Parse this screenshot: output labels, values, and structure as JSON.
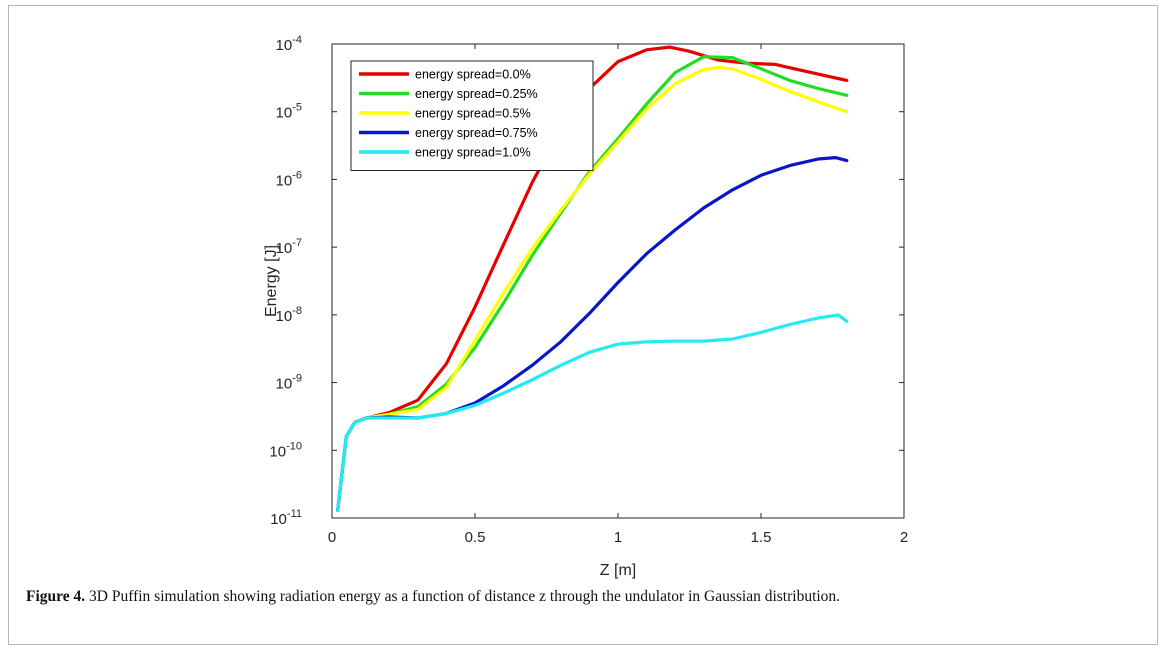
{
  "caption": {
    "label": "Figure 4.",
    "text": " 3D Puffin simulation showing radiation energy as a function of distance z through the undulator in Gaussian distribution."
  },
  "chart_data": {
    "type": "line",
    "xlabel": "Z [m]",
    "ylabel": "Energy [J]",
    "xlim": [
      0,
      2
    ],
    "ylim": [
      1e-11,
      0.0001
    ],
    "yscale": "log",
    "grid": false,
    "legend_position": "top-left",
    "x_ticks": [
      0,
      0.5,
      1,
      1.5,
      2
    ],
    "x_tick_labels": [
      "0",
      "0.5",
      "1",
      "1.5",
      "2"
    ],
    "y_ticks": [
      -11,
      -10,
      -9,
      -8,
      -7,
      -6,
      -5,
      -4
    ],
    "y_tick_base": "10",
    "y_tick_exponents": [
      "-11",
      "-10",
      "-9",
      "-8",
      "-7",
      "-6",
      "-5",
      "-4"
    ],
    "series": [
      {
        "name": "energy spread=0.0%",
        "color": "#e60000",
        "x": [
          0.02,
          0.05,
          0.08,
          0.12,
          0.2,
          0.3,
          0.4,
          0.5,
          0.6,
          0.7,
          0.8,
          0.9,
          1.0,
          1.1,
          1.18,
          1.25,
          1.35,
          1.45,
          1.55,
          1.65,
          1.8
        ],
        "y": [
          1.3e-11,
          1.6e-10,
          2.6e-10,
          3e-10,
          3.6e-10,
          5.5e-10,
          1.9e-09,
          1.3e-08,
          1.1e-07,
          9e-07,
          5.5e-06,
          2.2e-05,
          5.5e-05,
          8.2e-05,
          9e-05,
          7.8e-05,
          5.8e-05,
          5.2e-05,
          5e-05,
          4e-05,
          2.9e-05
        ]
      },
      {
        "name": "energy spread=0.25%",
        "color": "#22dd22",
        "x": [
          0.02,
          0.05,
          0.08,
          0.12,
          0.2,
          0.3,
          0.4,
          0.5,
          0.6,
          0.7,
          0.8,
          0.9,
          1.0,
          1.1,
          1.2,
          1.3,
          1.4,
          1.5,
          1.6,
          1.7,
          1.8
        ],
        "y": [
          1.3e-11,
          1.6e-10,
          2.6e-10,
          3e-10,
          3.4e-10,
          4.4e-10,
          9.5e-10,
          3.3e-09,
          1.5e-08,
          7.5e-08,
          3.2e-07,
          1.3e-06,
          4e-06,
          1.3e-05,
          3.8e-05,
          6.5e-05,
          6.3e-05,
          4.3e-05,
          2.9e-05,
          2.2e-05,
          1.75e-05
        ]
      },
      {
        "name": "energy spread=0.5%",
        "color": "#ffff00",
        "x": [
          0.02,
          0.05,
          0.08,
          0.12,
          0.2,
          0.3,
          0.4,
          0.5,
          0.6,
          0.7,
          0.8,
          0.9,
          1.0,
          1.1,
          1.2,
          1.3,
          1.35,
          1.4,
          1.5,
          1.6,
          1.7,
          1.8
        ],
        "y": [
          1.3e-11,
          1.6e-10,
          2.6e-10,
          3e-10,
          3.4e-10,
          4e-10,
          8.5e-10,
          4.2e-09,
          2.1e-08,
          9.5e-08,
          3.5e-07,
          1.2e-06,
          3.6e-06,
          1.1e-05,
          2.6e-05,
          4.2e-05,
          4.5e-05,
          4.3e-05,
          3e-05,
          2e-05,
          1.4e-05,
          1e-05
        ]
      },
      {
        "name": "energy spread=0.75%",
        "color": "#0a14c8",
        "x": [
          0.02,
          0.05,
          0.08,
          0.12,
          0.2,
          0.3,
          0.4,
          0.5,
          0.6,
          0.7,
          0.8,
          0.9,
          1.0,
          1.1,
          1.2,
          1.3,
          1.4,
          1.5,
          1.6,
          1.7,
          1.76,
          1.8
        ],
        "y": [
          1.3e-11,
          1.6e-10,
          2.6e-10,
          3e-10,
          3.1e-10,
          3e-10,
          3.5e-10,
          5e-10,
          9e-10,
          1.8e-09,
          4e-09,
          1.05e-08,
          3e-08,
          8e-08,
          1.8e-07,
          3.8e-07,
          7e-07,
          1.15e-06,
          1.6e-06,
          2e-06,
          2.1e-06,
          1.9e-06
        ]
      },
      {
        "name": "energy spread=1.0%",
        "color": "#22ecf0",
        "x": [
          0.02,
          0.05,
          0.08,
          0.12,
          0.2,
          0.3,
          0.4,
          0.5,
          0.6,
          0.7,
          0.8,
          0.9,
          1.0,
          1.1,
          1.2,
          1.3,
          1.4,
          1.5,
          1.6,
          1.7,
          1.77,
          1.8
        ],
        "y": [
          1.3e-11,
          1.6e-10,
          2.6e-10,
          3e-10,
          3e-10,
          3e-10,
          3.5e-10,
          4.6e-10,
          7e-10,
          1.1e-09,
          1.8e-09,
          2.8e-09,
          3.7e-09,
          4e-09,
          4.1e-09,
          4.1e-09,
          4.4e-09,
          5.5e-09,
          7.2e-09,
          9e-09,
          1e-08,
          8e-09
        ]
      }
    ]
  }
}
